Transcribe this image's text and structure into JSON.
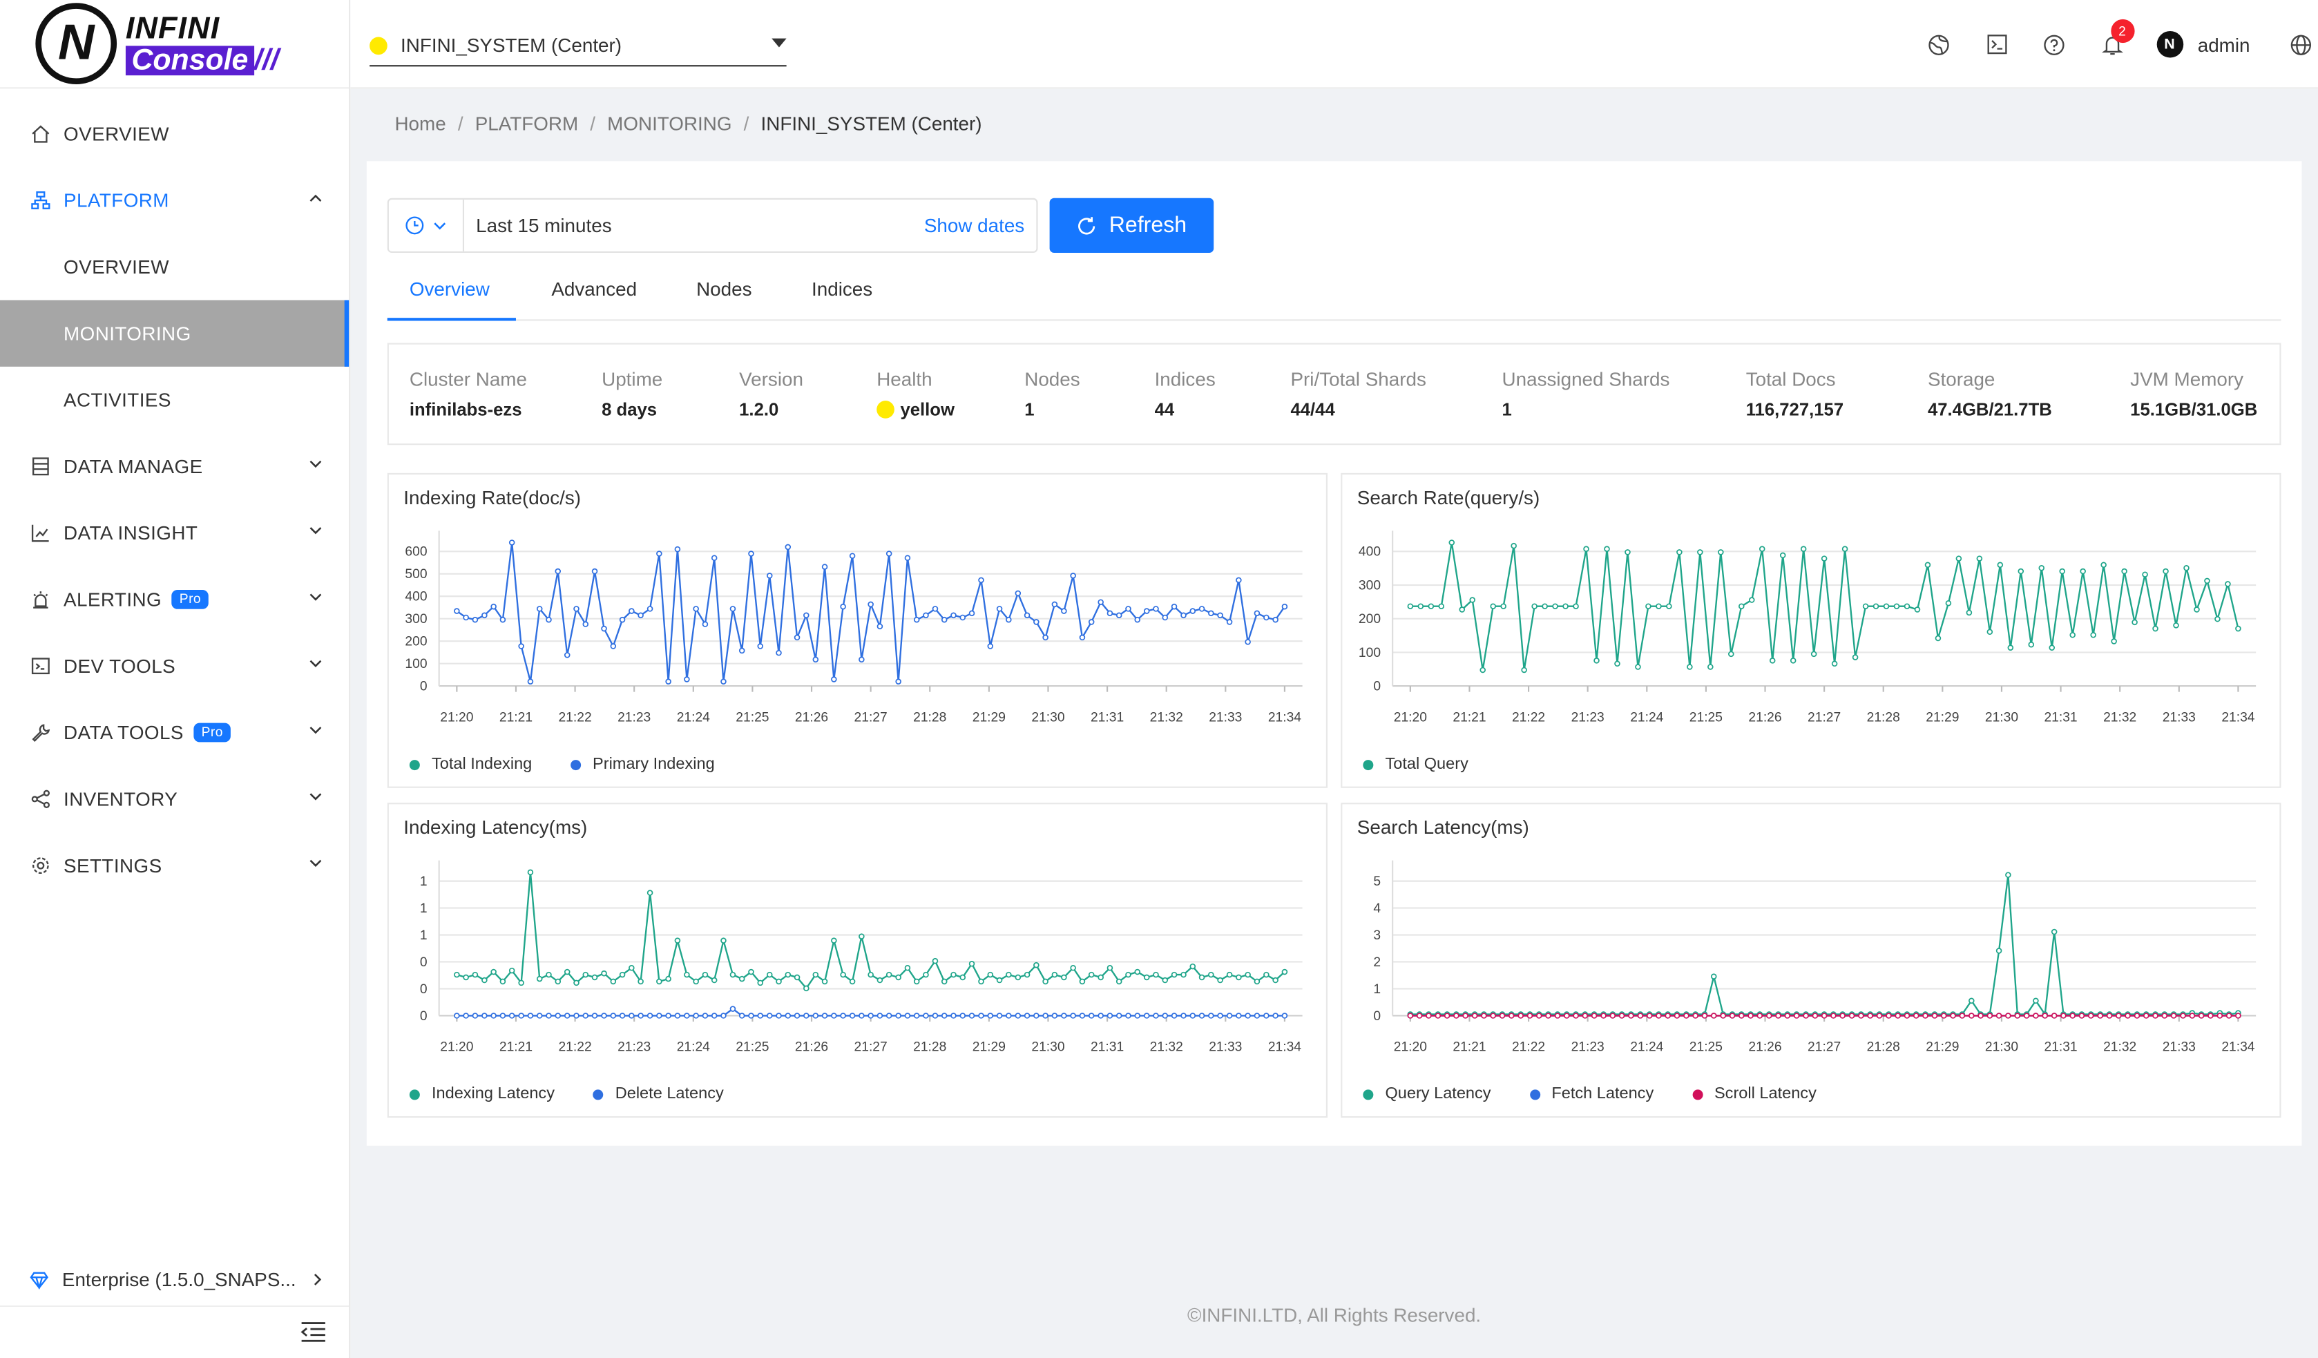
{
  "app": {
    "logo_line1": "INFINI",
    "logo_line2": "Console",
    "logo_mark": "N"
  },
  "topbar": {
    "cluster": "INFINI_SYSTEM (Center)",
    "notifications": "2",
    "user": "admin"
  },
  "sidebar": {
    "items": [
      {
        "label": "OVERVIEW",
        "icon": "home-icon"
      },
      {
        "label": "PLATFORM",
        "icon": "cluster-icon"
      },
      {
        "label": "OVERVIEW"
      },
      {
        "label": "MONITORING"
      },
      {
        "label": "ACTIVITIES"
      },
      {
        "label": "DATA MANAGE",
        "icon": "database-icon"
      },
      {
        "label": "DATA INSIGHT",
        "icon": "chart-icon"
      },
      {
        "label": "ALERTING",
        "icon": "alarm-icon",
        "badge": "Pro"
      },
      {
        "label": "DEV TOOLS",
        "icon": "terminal-icon"
      },
      {
        "label": "DATA TOOLS",
        "icon": "wrench-icon",
        "badge": "Pro"
      },
      {
        "label": "INVENTORY",
        "icon": "share-icon"
      },
      {
        "label": "SETTINGS",
        "icon": "gear-icon"
      }
    ],
    "enterprise": "Enterprise (1.5.0_SNAPS..."
  },
  "breadcrumb": [
    "Home",
    "PLATFORM",
    "MONITORING",
    "INFINI_SYSTEM (Center)"
  ],
  "toolbar": {
    "range": "Last 15 minutes",
    "show_dates": "Show dates",
    "refresh": "Refresh"
  },
  "tabs": [
    "Overview",
    "Advanced",
    "Nodes",
    "Indices"
  ],
  "stats": [
    {
      "label": "Cluster Name",
      "value": "infinilabs-ezs"
    },
    {
      "label": "Uptime",
      "value": "8 days"
    },
    {
      "label": "Version",
      "value": "1.2.0"
    },
    {
      "label": "Health",
      "value": "yellow"
    },
    {
      "label": "Nodes",
      "value": "1"
    },
    {
      "label": "Indices",
      "value": "44"
    },
    {
      "label": "Pri/Total Shards",
      "value": "44/44"
    },
    {
      "label": "Unassigned Shards",
      "value": "1"
    },
    {
      "label": "Total Docs",
      "value": "116,727,157"
    },
    {
      "label": "Storage",
      "value": "47.4GB/21.7TB"
    },
    {
      "label": "JVM Memory",
      "value": "15.1GB/31.0GB"
    }
  ],
  "colors": {
    "accent": "#1677ff",
    "teal": "#1fa58a",
    "blue": "#2f6fe0",
    "crimson": "#d1105a",
    "health": "#ffea00"
  },
  "footer": "©INFINI.LTD, All Rights Reserved.",
  "chart_data": [
    {
      "type": "line",
      "title": "Indexing Rate(doc/s)",
      "x_ticks": [
        "21:20",
        "21:21",
        "21:22",
        "21:23",
        "21:24",
        "21:25",
        "21:26",
        "21:27",
        "21:28",
        "21:29",
        "21:30",
        "21:31",
        "21:32",
        "21:33",
        "21:34"
      ],
      "y_ticks": [
        "0",
        "100",
        "200",
        "300",
        "400",
        "500",
        "600"
      ],
      "ylim": [
        0,
        650
      ],
      "series": [
        {
          "name": "Total Indexing",
          "color": "#1fa58a",
          "values": []
        },
        {
          "name": "Primary Indexing",
          "color": "#2f6fe0",
          "values": [
            340,
            310,
            300,
            320,
            360,
            300,
            650,
            180,
            20,
            350,
            300,
            520,
            140,
            350,
            280,
            520,
            260,
            180,
            300,
            340,
            320,
            350,
            600,
            20,
            620,
            30,
            350,
            280,
            580,
            20,
            350,
            160,
            600,
            180,
            500,
            150,
            630,
            220,
            320,
            120,
            540,
            30,
            360,
            590,
            120,
            370,
            270,
            600,
            20,
            580,
            300,
            320,
            350,
            300,
            320,
            310,
            330,
            480,
            180,
            350,
            300,
            420,
            320,
            290,
            220,
            370,
            340,
            500,
            220,
            290,
            380,
            330,
            320,
            350,
            300,
            340,
            350,
            310,
            360,
            320,
            340,
            350,
            330,
            320,
            290,
            480,
            200,
            330,
            310,
            300,
            360
          ]
        }
      ]
    },
    {
      "type": "line",
      "title": "Search Rate(query/s)",
      "x_ticks": [
        "21:20",
        "21:21",
        "21:22",
        "21:23",
        "21:24",
        "21:25",
        "21:26",
        "21:27",
        "21:28",
        "21:29",
        "21:30",
        "21:31",
        "21:32",
        "21:33",
        "21:34"
      ],
      "y_ticks": [
        "0",
        "100",
        "200",
        "300",
        "400"
      ],
      "ylim": [
        0,
        450
      ],
      "series": [
        {
          "name": "Total Query",
          "color": "#1fa58a",
          "values": [
            250,
            250,
            250,
            250,
            450,
            240,
            270,
            50,
            250,
            250,
            440,
            50,
            250,
            250,
            250,
            250,
            250,
            430,
            80,
            430,
            70,
            420,
            60,
            250,
            250,
            250,
            420,
            60,
            420,
            60,
            420,
            100,
            250,
            270,
            430,
            80,
            410,
            80,
            430,
            100,
            400,
            70,
            430,
            90,
            250,
            250,
            250,
            250,
            250,
            240,
            380,
            150,
            260,
            400,
            230,
            400,
            170,
            380,
            120,
            360,
            130,
            370,
            120,
            360,
            160,
            360,
            160,
            380,
            140,
            360,
            200,
            350,
            180,
            360,
            190,
            370,
            240,
            330,
            210,
            320,
            180
          ]
        }
      ]
    },
    {
      "type": "line",
      "title": "Indexing Latency(ms)",
      "x_ticks": [
        "21:20",
        "21:21",
        "21:22",
        "21:23",
        "21:24",
        "21:25",
        "21:26",
        "21:27",
        "21:28",
        "21:29",
        "21:30",
        "21:31",
        "21:32",
        "21:33",
        "21:34"
      ],
      "y_ticks": [
        "0",
        "0",
        "0",
        "1",
        "1",
        "1"
      ],
      "ylim": [
        0,
        1.05
      ],
      "series": [
        {
          "name": "Indexing Latency",
          "color": "#1fa58a",
          "values": [
            0.3,
            0.28,
            0.3,
            0.26,
            0.32,
            0.25,
            0.33,
            0.24,
            1.05,
            0.27,
            0.3,
            0.25,
            0.32,
            0.24,
            0.3,
            0.28,
            0.31,
            0.25,
            0.3,
            0.35,
            0.25,
            0.9,
            0.25,
            0.27,
            0.55,
            0.3,
            0.25,
            0.3,
            0.26,
            0.55,
            0.3,
            0.27,
            0.32,
            0.24,
            0.3,
            0.25,
            0.3,
            0.28,
            0.2,
            0.3,
            0.25,
            0.55,
            0.3,
            0.25,
            0.58,
            0.3,
            0.26,
            0.3,
            0.28,
            0.35,
            0.25,
            0.3,
            0.4,
            0.25,
            0.3,
            0.28,
            0.38,
            0.25,
            0.3,
            0.26,
            0.3,
            0.28,
            0.3,
            0.37,
            0.25,
            0.3,
            0.28,
            0.35,
            0.25,
            0.3,
            0.28,
            0.35,
            0.25,
            0.3,
            0.32,
            0.28,
            0.3,
            0.26,
            0.3,
            0.3,
            0.36,
            0.28,
            0.3,
            0.26,
            0.3,
            0.28,
            0.3,
            0.25,
            0.3,
            0.26,
            0.32
          ]
        },
        {
          "name": "Delete Latency",
          "color": "#2f6fe0",
          "values": [
            0,
            0,
            0,
            0,
            0,
            0,
            0,
            0,
            0,
            0,
            0,
            0,
            0,
            0,
            0,
            0,
            0,
            0,
            0,
            0,
            0,
            0,
            0,
            0,
            0,
            0,
            0,
            0,
            0,
            0,
            0.05,
            0,
            0,
            0,
            0,
            0,
            0,
            0,
            0,
            0,
            0,
            0,
            0,
            0,
            0,
            0,
            0,
            0,
            0,
            0,
            0,
            0,
            0,
            0,
            0,
            0,
            0,
            0,
            0,
            0,
            0,
            0,
            0,
            0,
            0,
            0,
            0,
            0,
            0,
            0,
            0,
            0,
            0,
            0,
            0,
            0,
            0,
            0,
            0,
            0,
            0,
            0,
            0,
            0,
            0,
            0,
            0,
            0,
            0,
            0,
            0
          ]
        }
      ]
    },
    {
      "type": "line",
      "title": "Search Latency(ms)",
      "x_ticks": [
        "21:20",
        "21:21",
        "21:22",
        "21:23",
        "21:24",
        "21:25",
        "21:26",
        "21:27",
        "21:28",
        "21:29",
        "21:30",
        "21:31",
        "21:32",
        "21:33",
        "21:34"
      ],
      "y_ticks": [
        "0",
        "1",
        "2",
        "3",
        "4",
        "5"
      ],
      "ylim": [
        0,
        5.3
      ],
      "series": [
        {
          "name": "Query Latency",
          "color": "#1fa58a",
          "values": [
            0.05,
            0.05,
            0.05,
            0.05,
            0.05,
            0.05,
            0.05,
            0.05,
            0.05,
            0.05,
            0.05,
            0.05,
            0.05,
            0.05,
            0.05,
            0.05,
            0.05,
            0.05,
            0.05,
            0.05,
            0.05,
            0.05,
            0.05,
            0.05,
            0.05,
            0.05,
            0.05,
            0.05,
            0.05,
            0.05,
            0.05,
            0.05,
            0.05,
            1.45,
            0.05,
            0.05,
            0.05,
            0.05,
            0.05,
            0.05,
            0.05,
            0.05,
            0.05,
            0.05,
            0.05,
            0.05,
            0.05,
            0.05,
            0.05,
            0.05,
            0.05,
            0.05,
            0.05,
            0.05,
            0.05,
            0.05,
            0.05,
            0.05,
            0.05,
            0.05,
            0.05,
            0.55,
            0.05,
            0.05,
            2.4,
            5.2,
            0.05,
            0.05,
            0.55,
            0.05,
            3.1,
            0.05,
            0.05,
            0.05,
            0.05,
            0.05,
            0.05,
            0.05,
            0.05,
            0.05,
            0.05,
            0.05,
            0.05,
            0.05,
            0.05,
            0.1,
            0.05,
            0.05,
            0.1,
            0.05,
            0.1
          ]
        },
        {
          "name": "Fetch Latency",
          "color": "#2f6fe0",
          "values": [
            0,
            0,
            0,
            0,
            0,
            0,
            0,
            0,
            0,
            0,
            0,
            0,
            0,
            0,
            0,
            0,
            0,
            0,
            0,
            0,
            0,
            0,
            0,
            0,
            0,
            0,
            0,
            0,
            0,
            0,
            0,
            0,
            0,
            0,
            0,
            0,
            0,
            0,
            0,
            0,
            0,
            0,
            0,
            0,
            0,
            0,
            0,
            0,
            0,
            0,
            0,
            0,
            0,
            0,
            0,
            0,
            0,
            0,
            0,
            0,
            0,
            0,
            0,
            0,
            0,
            0,
            0,
            0,
            0,
            0,
            0,
            0,
            0,
            0,
            0,
            0,
            0,
            0,
            0,
            0,
            0,
            0,
            0,
            0,
            0,
            0,
            0,
            0,
            0,
            0,
            0
          ]
        },
        {
          "name": "Scroll Latency",
          "color": "#d1105a",
          "values": [
            0,
            0,
            0,
            0,
            0,
            0,
            0,
            0,
            0,
            0,
            0,
            0,
            0,
            0,
            0,
            0,
            0,
            0,
            0,
            0,
            0,
            0,
            0,
            0,
            0,
            0,
            0,
            0,
            0,
            0,
            0,
            0,
            0,
            0,
            0,
            0,
            0,
            0,
            0,
            0,
            0,
            0,
            0,
            0,
            0,
            0,
            0,
            0,
            0,
            0,
            0,
            0,
            0,
            0,
            0,
            0,
            0,
            0,
            0,
            0,
            0,
            0,
            0,
            0,
            0,
            0,
            0,
            0,
            0,
            0,
            0,
            0,
            0,
            0,
            0,
            0,
            0,
            0,
            0,
            0,
            0,
            0,
            0,
            0,
            0,
            0,
            0,
            0,
            0,
            0,
            0
          ]
        }
      ]
    }
  ]
}
